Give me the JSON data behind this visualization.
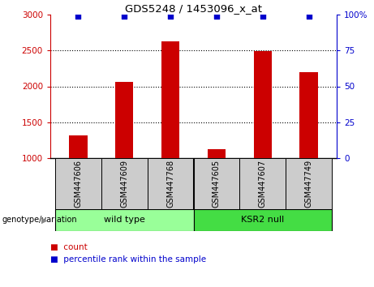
{
  "title": "GDS5248 / 1453096_x_at",
  "samples": [
    "GSM447606",
    "GSM447609",
    "GSM447768",
    "GSM447605",
    "GSM447607",
    "GSM447749"
  ],
  "counts": [
    1320,
    2060,
    2630,
    1120,
    2490,
    2200
  ],
  "percentiles": [
    99,
    99,
    99,
    99,
    99,
    99
  ],
  "ylim_left": [
    1000,
    3000
  ],
  "ylim_right": [
    0,
    100
  ],
  "yticks_left": [
    1000,
    1500,
    2000,
    2500,
    3000
  ],
  "yticks_right": [
    0,
    25,
    50,
    75,
    100
  ],
  "bar_color": "#cc0000",
  "dot_color": "#0000cc",
  "bar_bottom": 1000,
  "groups": [
    {
      "label": "wild type",
      "indices": [
        0,
        1,
        2
      ],
      "color": "#99ff99"
    },
    {
      "label": "KSR2 null",
      "indices": [
        3,
        4,
        5
      ],
      "color": "#44dd44"
    }
  ],
  "genotype_label": "genotype/variation",
  "legend_count_label": "count",
  "legend_percentile_label": "percentile rank within the sample",
  "grid_color": "#000000",
  "sample_box_color": "#cccccc",
  "background_color": "#ffffff",
  "left_tick_color": "#cc0000",
  "right_tick_color": "#0000cc",
  "bar_width": 0.4
}
